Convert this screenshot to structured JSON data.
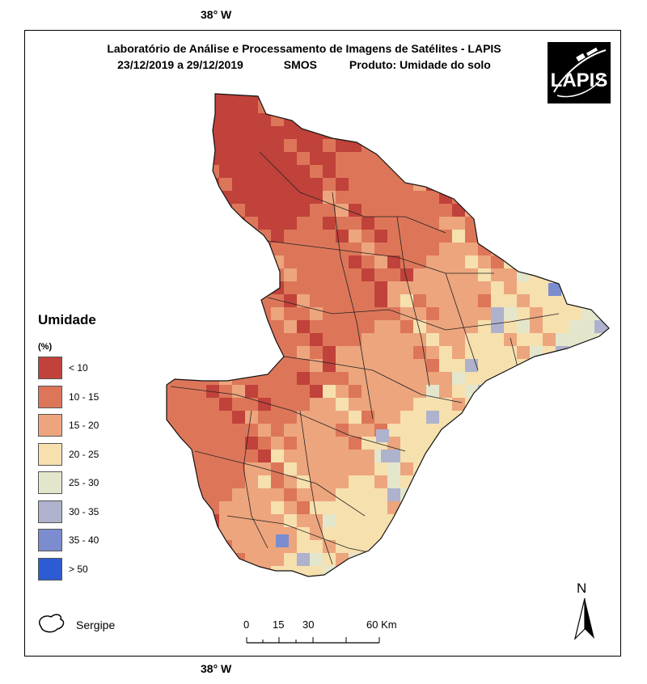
{
  "coord_top": "38° W",
  "coord_bottom": "38° W",
  "title": {
    "line1": "Laboratório de Análise e Processamento de Imagens de Satélites - LAPIS",
    "dates": "23/12/2019  a 29/12/2019",
    "sensor": "SMOS",
    "product": "Produto: Umidade do solo"
  },
  "logo": {
    "text": "LAPIS",
    "icon": "satellite-orbit-icon"
  },
  "legend": {
    "title": "Umidade",
    "unit": "(%)",
    "classes": [
      {
        "label": "< 10",
        "color": "#c0423a"
      },
      {
        "label": "10 - 15",
        "color": "#dd7659"
      },
      {
        "label": "15 - 20",
        "color": "#eda57d"
      },
      {
        "label": "20 - 25",
        "color": "#f6e0ae"
      },
      {
        "label": "25 - 30",
        "color": "#e4e6cc"
      },
      {
        "label": "30 - 35",
        "color": "#aeb2cc"
      },
      {
        "label": "35 - 40",
        "color": "#7b8ccf"
      },
      {
        "label": "> 50",
        "color": "#2d5bd4"
      }
    ]
  },
  "boundary_label": "Sergipe",
  "scale": {
    "ticks": [
      "0",
      "15",
      "30",
      "60 Km"
    ]
  },
  "north": "N"
}
